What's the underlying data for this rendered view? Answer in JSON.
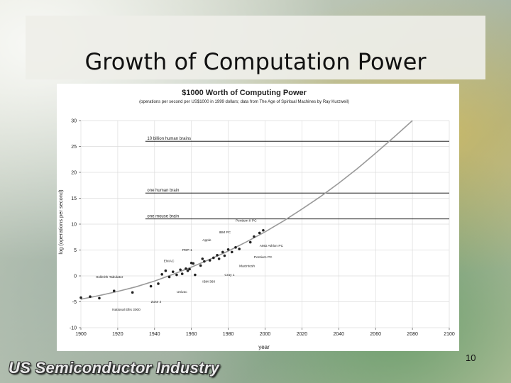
{
  "slide": {
    "title": "Growth of Computation Power",
    "page_number": "10",
    "footer": "US Semiconductor Industry"
  },
  "chart_data": {
    "type": "line",
    "title": "$1000 Worth of Computing Power",
    "subtitle": "(operations per second per US$1000 in 1999 dollars; data from The Age of Spiritual Machines by Ray Kurzweil)",
    "xlabel": "year",
    "ylabel": "log (operations per second)",
    "xlim": [
      1900,
      2100
    ],
    "ylim": [
      -10,
      30
    ],
    "x_ticks": [
      1900,
      1920,
      1940,
      1960,
      1980,
      2000,
      2020,
      2040,
      2060,
      2080,
      2100
    ],
    "y_ticks": [
      -10,
      -5,
      0,
      5,
      10,
      15,
      20,
      25,
      30
    ],
    "grid": true,
    "colors": {
      "trend": "#9a9a9a",
      "points": "#222222",
      "reference": "#000000"
    },
    "trend": {
      "x": [
        1900,
        1910,
        1920,
        1930,
        1940,
        1950,
        1960,
        1970,
        1980,
        1990,
        2000,
        2010,
        2020,
        2030,
        2040,
        2050,
        2060,
        2070,
        2080
      ],
      "y": [
        -4.5,
        -3.8,
        -3.0,
        -2.1,
        -1.0,
        0.3,
        1.7,
        3.2,
        4.8,
        6.6,
        8.5,
        10.6,
        12.9,
        15.3,
        17.9,
        20.7,
        23.7,
        26.8,
        30.0
      ]
    },
    "points": [
      {
        "x": 1900,
        "y": -4.2
      },
      {
        "x": 1905,
        "y": -4.0
      },
      {
        "x": 1910,
        "y": -4.3
      },
      {
        "x": 1918,
        "y": -2.9
      },
      {
        "x": 1928,
        "y": -3.2
      },
      {
        "x": 1938,
        "y": -2.0
      },
      {
        "x": 1942,
        "y": -1.5
      },
      {
        "x": 1944,
        "y": 0.3
      },
      {
        "x": 1946,
        "y": 1.0
      },
      {
        "x": 1948,
        "y": -0.2
      },
      {
        "x": 1950,
        "y": 0.8
      },
      {
        "x": 1952,
        "y": 0.2
      },
      {
        "x": 1954,
        "y": 1.2
      },
      {
        "x": 1955,
        "y": 0.4
      },
      {
        "x": 1957,
        "y": 1.4
      },
      {
        "x": 1958,
        "y": 1.0
      },
      {
        "x": 1959,
        "y": 1.3
      },
      {
        "x": 1960,
        "y": 2.5
      },
      {
        "x": 1961,
        "y": 2.4
      },
      {
        "x": 1962,
        "y": 0.2
      },
      {
        "x": 1965,
        "y": 2.0
      },
      {
        "x": 1966,
        "y": 3.3
      },
      {
        "x": 1967,
        "y": 2.8
      },
      {
        "x": 1970,
        "y": 3.0
      },
      {
        "x": 1972,
        "y": 3.5
      },
      {
        "x": 1974,
        "y": 4.0
      },
      {
        "x": 1975,
        "y": 3.3
      },
      {
        "x": 1977,
        "y": 4.6
      },
      {
        "x": 1978,
        "y": 3.9
      },
      {
        "x": 1980,
        "y": 5.1
      },
      {
        "x": 1982,
        "y": 4.6
      },
      {
        "x": 1984,
        "y": 5.5
      },
      {
        "x": 1986,
        "y": 5.2
      },
      {
        "x": 1992,
        "y": 6.5
      },
      {
        "x": 1994,
        "y": 7.6
      },
      {
        "x": 1997,
        "y": 8.3
      },
      {
        "x": 1999,
        "y": 8.8
      }
    ],
    "reference_lines": [
      {
        "label": "one mouse brain",
        "y": 11.0
      },
      {
        "label": "one human brain",
        "y": 16.0
      },
      {
        "label": "10 billion human brains",
        "y": 26.0
      }
    ],
    "annotations": [
      {
        "text": "Hollerith Tabulator",
        "x": 1908,
        "y": -0.4
      },
      {
        "text": "National Ellis 3000",
        "x": 1917,
        "y": -6.7
      },
      {
        "text": "Zuse 2",
        "x": 1938,
        "y": -5.2
      },
      {
        "text": "ENIAC",
        "x": 1945,
        "y": 2.7
      },
      {
        "text": "Univac",
        "x": 1952,
        "y": -3.3
      },
      {
        "text": "PDP-1",
        "x": 1955,
        "y": 4.8
      },
      {
        "text": "IBM 360",
        "x": 1966,
        "y": -1.3
      },
      {
        "text": "Apple",
        "x": 1966,
        "y": 6.7
      },
      {
        "text": "IBM PC",
        "x": 1975,
        "y": 8.2
      },
      {
        "text": "Pentium II PC",
        "x": 1984,
        "y": 10.5
      },
      {
        "text": "Cray 1",
        "x": 1978,
        "y": 0.0
      },
      {
        "text": "Macintosh",
        "x": 1986,
        "y": 1.7
      },
      {
        "text": "Pentium PC",
        "x": 1994,
        "y": 3.4
      },
      {
        "text": "AMD Athlon PC",
        "x": 1997,
        "y": 5.6
      }
    ]
  }
}
